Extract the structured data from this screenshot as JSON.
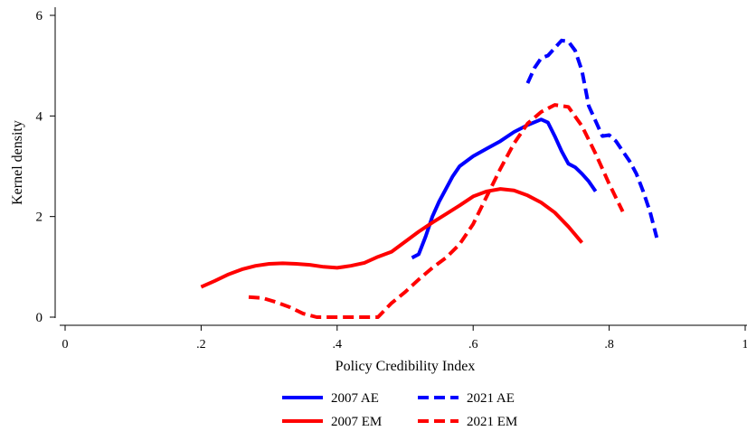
{
  "chart_data": {
    "type": "line",
    "title": "",
    "xlabel": "Policy Credibility Index",
    "ylabel": "Kernel density",
    "xlim": [
      0,
      1
    ],
    "ylim": [
      0,
      6
    ],
    "x_ticks": [
      0,
      0.2,
      0.4,
      0.6,
      0.8,
      1
    ],
    "x_tick_labels": [
      "0",
      ".2",
      ".4",
      ".6",
      ".8",
      "1"
    ],
    "y_ticks": [
      0,
      2,
      4,
      6
    ],
    "y_tick_labels": [
      "0",
      "2",
      "4",
      "6"
    ],
    "grid": false,
    "legend_position": "bottom",
    "series": [
      {
        "name": "2007 AE",
        "color": "#0000ff",
        "style": "solid",
        "points": [
          [
            0.51,
            1.18
          ],
          [
            0.52,
            1.25
          ],
          [
            0.53,
            1.6
          ],
          [
            0.54,
            2.0
          ],
          [
            0.55,
            2.3
          ],
          [
            0.56,
            2.55
          ],
          [
            0.57,
            2.8
          ],
          [
            0.58,
            3.0
          ],
          [
            0.6,
            3.2
          ],
          [
            0.62,
            3.35
          ],
          [
            0.64,
            3.5
          ],
          [
            0.66,
            3.68
          ],
          [
            0.68,
            3.82
          ],
          [
            0.7,
            3.93
          ],
          [
            0.71,
            3.87
          ],
          [
            0.72,
            3.6
          ],
          [
            0.73,
            3.3
          ],
          [
            0.74,
            3.05
          ],
          [
            0.75,
            2.98
          ],
          [
            0.76,
            2.85
          ],
          [
            0.77,
            2.7
          ],
          [
            0.78,
            2.5
          ]
        ]
      },
      {
        "name": "2021 AE",
        "color": "#0000ff",
        "style": "dashed",
        "points": [
          [
            0.68,
            4.65
          ],
          [
            0.69,
            4.95
          ],
          [
            0.7,
            5.15
          ],
          [
            0.71,
            5.2
          ],
          [
            0.72,
            5.35
          ],
          [
            0.73,
            5.5
          ],
          [
            0.74,
            5.48
          ],
          [
            0.75,
            5.3
          ],
          [
            0.76,
            4.9
          ],
          [
            0.77,
            4.2
          ],
          [
            0.78,
            3.9
          ],
          [
            0.79,
            3.6
          ],
          [
            0.8,
            3.62
          ],
          [
            0.81,
            3.5
          ],
          [
            0.82,
            3.3
          ],
          [
            0.83,
            3.1
          ],
          [
            0.84,
            2.85
          ],
          [
            0.85,
            2.5
          ],
          [
            0.86,
            2.1
          ],
          [
            0.87,
            1.58
          ]
        ]
      },
      {
        "name": "2007 EM",
        "color": "#ff0000",
        "style": "solid",
        "points": [
          [
            0.2,
            0.6
          ],
          [
            0.22,
            0.72
          ],
          [
            0.24,
            0.85
          ],
          [
            0.26,
            0.95
          ],
          [
            0.28,
            1.02
          ],
          [
            0.3,
            1.06
          ],
          [
            0.32,
            1.07
          ],
          [
            0.34,
            1.06
          ],
          [
            0.36,
            1.04
          ],
          [
            0.38,
            1.0
          ],
          [
            0.4,
            0.98
          ],
          [
            0.42,
            1.02
          ],
          [
            0.44,
            1.08
          ],
          [
            0.46,
            1.2
          ],
          [
            0.48,
            1.3
          ],
          [
            0.5,
            1.5
          ],
          [
            0.52,
            1.7
          ],
          [
            0.54,
            1.88
          ],
          [
            0.56,
            2.05
          ],
          [
            0.58,
            2.22
          ],
          [
            0.6,
            2.4
          ],
          [
            0.62,
            2.5
          ],
          [
            0.64,
            2.55
          ],
          [
            0.66,
            2.52
          ],
          [
            0.68,
            2.42
          ],
          [
            0.7,
            2.28
          ],
          [
            0.72,
            2.08
          ],
          [
            0.74,
            1.8
          ],
          [
            0.76,
            1.48
          ]
        ]
      },
      {
        "name": "2021 EM",
        "color": "#ff0000",
        "style": "dashed",
        "points": [
          [
            0.27,
            0.4
          ],
          [
            0.29,
            0.38
          ],
          [
            0.31,
            0.3
          ],
          [
            0.33,
            0.2
          ],
          [
            0.35,
            0.07
          ],
          [
            0.37,
            0.0
          ],
          [
            0.4,
            0.0
          ],
          [
            0.43,
            0.0
          ],
          [
            0.46,
            0.0
          ],
          [
            0.48,
            0.28
          ],
          [
            0.5,
            0.5
          ],
          [
            0.52,
            0.75
          ],
          [
            0.54,
            0.98
          ],
          [
            0.56,
            1.18
          ],
          [
            0.58,
            1.45
          ],
          [
            0.6,
            1.85
          ],
          [
            0.62,
            2.4
          ],
          [
            0.64,
            2.95
          ],
          [
            0.66,
            3.45
          ],
          [
            0.68,
            3.85
          ],
          [
            0.7,
            4.08
          ],
          [
            0.72,
            4.22
          ],
          [
            0.74,
            4.18
          ],
          [
            0.76,
            3.8
          ],
          [
            0.78,
            3.25
          ],
          [
            0.8,
            2.65
          ],
          [
            0.82,
            2.1
          ]
        ]
      }
    ]
  }
}
